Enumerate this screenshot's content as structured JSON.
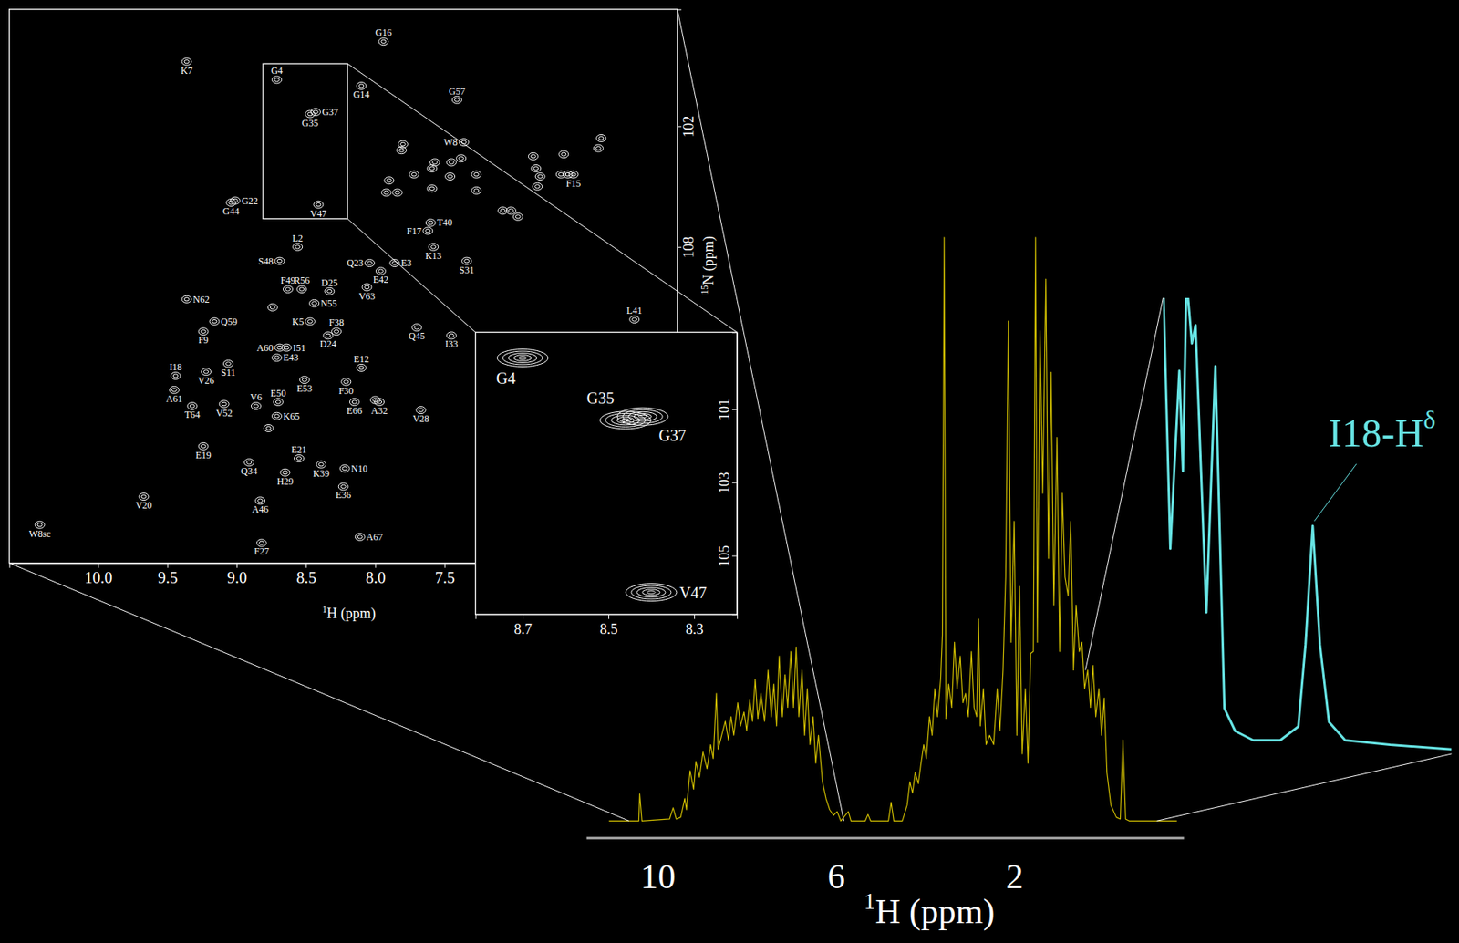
{
  "chart_data": [
    {
      "type": "scatter",
      "x_label": "1H (ppm)",
      "y_label": "15N (ppm)",
      "color": "#ffffff",
      "xlim": [
        10.64,
        5.82
      ],
      "ylim": [
        96.2,
        123.7
      ],
      "xticks": [
        {
          "value": 10,
          "label": "10.0"
        },
        9.5,
        {
          "value": 9,
          "label": "9.0"
        },
        8.5,
        {
          "value": 8,
          "label": "8.0"
        },
        7.5
      ],
      "yticks": [
        102,
        108
      ],
      "x": [
        9.36,
        7.94,
        8.71,
        8.1,
        7.41,
        8.47,
        8.43,
        7.36,
        9.01,
        9.04,
        8.41,
        6.57,
        7.6,
        7.62,
        7.58,
        7.34,
        8.56,
        8.69,
        8.04,
        7.86,
        7.96,
        8.63,
        8.53,
        8.33,
        8.06,
        8.44,
        9.36,
        6.13,
        8.47,
        9.16,
        8.28,
        8.34,
        7.7,
        7.45,
        9.24,
        8.69,
        8.64,
        8.71,
        9.44,
        9.06,
        8.1,
        9.22,
        8.51,
        8.21,
        9.45,
        8.7,
        8.86,
        9.32,
        9.09,
        8.15,
        7.97,
        8.71,
        7.67,
        9.24,
        8.55,
        8.91,
        8.39,
        8.22,
        8.65,
        8.23,
        9.67,
        8.83,
        8.11,
        8.82,
        10.42,
        7.8,
        7.81,
        7.57,
        7.59,
        7.45,
        7.38,
        7.72,
        7.46,
        7.9,
        7.92,
        7.84,
        7.59,
        7.27,
        7.27,
        7.02,
        6.97,
        6.86,
        6.84,
        6.83,
        6.81,
        6.64,
        6.61,
        6.39,
        6.37,
        8.74,
        8.77,
        8.0,
        7.08,
        6.66
      ],
      "y": [
        98.8,
        97.8,
        99.7,
        100.0,
        100.7,
        101.4,
        101.3,
        102.8,
        105.7,
        105.8,
        105.9,
        104.4,
        106.8,
        107.2,
        108.0,
        108.7,
        108.0,
        108.7,
        108.8,
        108.8,
        109.2,
        110.1,
        110.1,
        110.2,
        110.0,
        110.8,
        110.6,
        111.6,
        111.7,
        111.7,
        112.2,
        112.4,
        112.0,
        112.4,
        112.2,
        113.0,
        113.0,
        113.5,
        114.4,
        113.8,
        114.0,
        114.2,
        114.6,
        114.7,
        115.1,
        115.7,
        115.9,
        115.9,
        115.8,
        115.7,
        115.7,
        116.4,
        116.1,
        117.9,
        118.5,
        118.7,
        118.8,
        119.0,
        119.2,
        119.9,
        120.4,
        120.6,
        122.4,
        122.7,
        121.8,
        102.9,
        103.2,
        103.8,
        104.1,
        103.8,
        103.6,
        104.4,
        104.5,
        104.7,
        105.3,
        105.3,
        105.1,
        105.2,
        104.4,
        106.2,
        106.5,
        103.5,
        104.1,
        105.0,
        104.5,
        103.4,
        104.4,
        103.1,
        102.6,
        111.0,
        117.0,
        115.6,
        106.2,
        104.4
      ],
      "labels": [
        "K7",
        "G16",
        "G4",
        "G14",
        "G57",
        "G35",
        "G37",
        "W8",
        "G22",
        "G44",
        "V47",
        "F15",
        "T40",
        "F17",
        "K13",
        "S31",
        "L2",
        "S48",
        "Q23",
        "E3",
        "E42",
        "F49",
        "R56",
        "D25",
        "V63",
        "N55",
        "N62",
        "L41",
        "K5",
        "Q59",
        "F38",
        "D24",
        "Q45",
        "I33",
        "F9",
        "A60",
        "I51",
        "E43",
        "I18",
        "S11",
        "E12",
        "V26",
        "E53",
        "F30",
        "A61",
        "E50",
        "V6",
        "T64",
        "V52",
        "E66",
        "A32",
        "K65",
        "V28",
        "E19",
        "E21",
        "Q34",
        "K39",
        "N10",
        "H29",
        "E36",
        "V20",
        "A46",
        "A67",
        "F27",
        "W8sc",
        null,
        null,
        null,
        null,
        null,
        null,
        null,
        null,
        null,
        null,
        null,
        null,
        null,
        null,
        null,
        null,
        null,
        null,
        null,
        null,
        null,
        null,
        null,
        null,
        null,
        null,
        null,
        null,
        null
      ]
    },
    {
      "type": "scatter",
      "color": "#ffffff",
      "xlim": [
        8.81,
        8.2
      ],
      "ylim": [
        98.9,
        106.6
      ],
      "xticks": [
        8.7,
        8.5,
        8.3
      ],
      "yticks": [
        101,
        103,
        105
      ],
      "x": [
        8.7,
        8.46,
        8.42,
        8.4
      ],
      "y": [
        99.6,
        101.3,
        101.2,
        106.0
      ],
      "labels": [
        "G4",
        "G35",
        "G37",
        "V47"
      ]
    },
    {
      "type": "line",
      "x_label": "1H (ppm)",
      "color": "#cfbd00",
      "xlim": [
        11.6,
        -1.8
      ],
      "ylim": [
        0,
        640
      ],
      "xticks": [
        10,
        6,
        2
      ],
      "tick_labels": "x",
      "x": [
        11.09,
        10.42,
        10.4,
        10.35,
        9.73,
        9.65,
        9.58,
        9.48,
        9.39,
        9.35,
        9.27,
        9.19,
        9.14,
        9.06,
        8.98,
        8.89,
        8.81,
        8.75,
        8.68,
        8.64,
        8.56,
        8.48,
        8.41,
        8.35,
        8.29,
        8.2,
        8.14,
        8.06,
        8.0,
        7.93,
        7.87,
        7.81,
        7.75,
        7.68,
        7.6,
        7.52,
        7.45,
        7.39,
        7.33,
        7.27,
        7.2,
        7.14,
        7.08,
        7.01,
        6.95,
        6.89,
        6.83,
        6.76,
        6.7,
        6.64,
        6.58,
        6.51,
        6.45,
        6.39,
        6.3,
        6.22,
        6.14,
        6.05,
        5.97,
        5.89,
        5.72,
        5.66,
        5.34,
        5.28,
        5.22,
        4.82,
        4.76,
        4.7,
        4.51,
        4.4,
        4.34,
        4.28,
        4.22,
        4.15,
        4.09,
        4.03,
        3.97,
        3.9,
        3.84,
        3.78,
        3.72,
        3.65,
        3.61,
        3.57,
        3.53,
        3.47,
        3.4,
        3.34,
        3.28,
        3.21,
        3.15,
        3.09,
        3.03,
        2.96,
        2.9,
        2.84,
        2.8,
        2.76,
        2.69,
        2.63,
        2.55,
        2.46,
        2.38,
        2.32,
        2.25,
        2.19,
        2.13,
        2.07,
        2.0,
        1.94,
        1.88,
        1.82,
        1.75,
        1.69,
        1.63,
        1.57,
        1.52,
        1.48,
        1.42,
        1.36,
        1.29,
        1.23,
        1.17,
        1.11,
        1.04,
        0.98,
        0.92,
        0.86,
        0.79,
        0.73,
        0.67,
        0.61,
        0.54,
        0.48,
        0.42,
        0.35,
        0.29,
        0.23,
        0.17,
        0.1,
        0.04,
        -0.02,
        -0.08,
        -0.17,
        -0.29,
        -0.38,
        -0.44,
        -0.5,
        -0.58,
        -0.92,
        -1.65
      ],
      "y": [
        0,
        0,
        29,
        0,
        2,
        14,
        2,
        4,
        24,
        12,
        54,
        34,
        64,
        47,
        74,
        56,
        82,
        67,
        137,
        77,
        92,
        107,
        87,
        112,
        92,
        127,
        102,
        117,
        97,
        130,
        107,
        152,
        110,
        137,
        107,
        162,
        112,
        147,
        102,
        177,
        112,
        157,
        122,
        182,
        122,
        187,
        112,
        162,
        92,
        142,
        82,
        112,
        62,
        92,
        42,
        24,
        12,
        6,
        10,
        0,
        10,
        0,
        0,
        7,
        0,
        0,
        20,
        0,
        0,
        17,
        42,
        30,
        52,
        40,
        62,
        82,
        67,
        112,
        92,
        142,
        112,
        152,
        200,
        627,
        110,
        147,
        122,
        192,
        142,
        177,
        127,
        137,
        112,
        182,
        122,
        112,
        217,
        102,
        142,
        82,
        92,
        82,
        142,
        97,
        162,
        262,
        537,
        192,
        322,
        92,
        252,
        72,
        142,
        62,
        180,
        182,
        627,
        192,
        527,
        352,
        582,
        282,
        482,
        232,
        412,
        182,
        352,
        262,
        242,
        322,
        162,
        232,
        182,
        192,
        142,
        162,
        122,
        167,
        112,
        142,
        92,
        132,
        52,
        17,
        4,
        2,
        87,
        2,
        0,
        0,
        0
      ]
    },
    {
      "type": "line",
      "color": "#66e3e3",
      "xlim": [
        0.4,
        -1.2
      ],
      "ylim": [
        0,
        100
      ],
      "tick_labels": false,
      "x": [
        0.4,
        0.36,
        0.31,
        0.29,
        0.27,
        0.24,
        0.22,
        0.16,
        0.11,
        0.06,
        0.0,
        -0.1,
        -0.25,
        -0.35,
        -0.39,
        -0.43,
        -0.47,
        -0.52,
        -0.61,
        -0.86,
        -1.2
      ],
      "y": [
        104,
        45,
        84,
        62,
        104,
        90,
        94,
        31,
        85,
        10,
        5,
        3,
        3,
        6,
        24,
        50,
        24,
        7,
        3,
        2,
        1
      ],
      "annotations": [
        {
          "text": "I18-Hδ",
          "x": -0.43,
          "y": 50
        }
      ]
    }
  ]
}
